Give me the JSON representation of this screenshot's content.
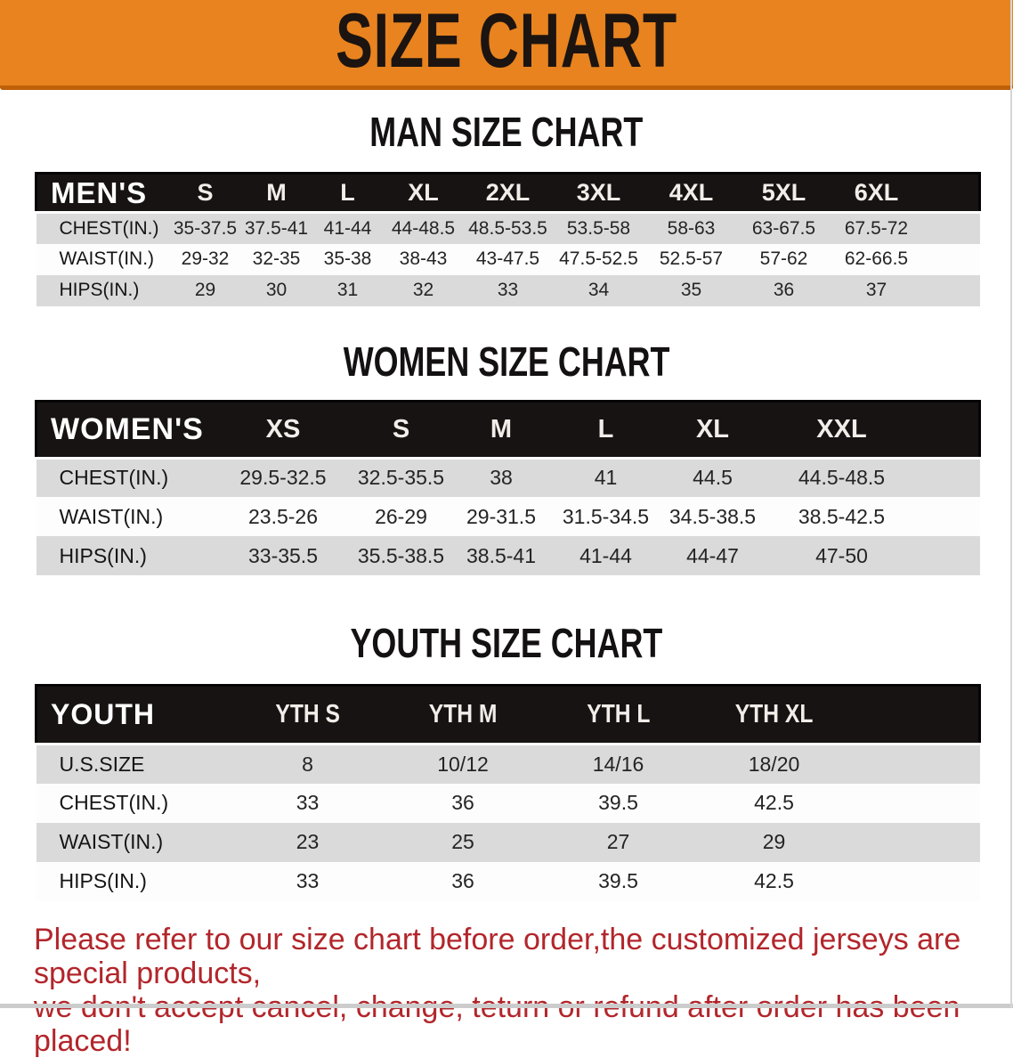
{
  "banner": {
    "title": "SIZE CHART"
  },
  "colors": {
    "banner_bg": "#e8831f",
    "banner_edge": "#bf6009",
    "table_header_bg": "#181313",
    "row_gray": "#dadada",
    "row_white": "#fdfdfd",
    "footer_red": "#b2262b"
  },
  "chart_data": [
    {
      "type": "table",
      "title": "MAN SIZE CHART",
      "corner_label": "MEN'S",
      "columns": [
        "S",
        "M",
        "L",
        "XL",
        "2XL",
        "3XL",
        "4XL",
        "5XL",
        "6XL"
      ],
      "rows": [
        {
          "label": "CHEST(IN.)",
          "values": [
            "35-37.5",
            "37.5-41",
            "41-44",
            "44-48.5",
            "48.5-53.5",
            "53.5-58",
            "58-63",
            "63-67.5",
            "67.5-72"
          ]
        },
        {
          "label": "WAIST(IN.)",
          "values": [
            "29-32",
            "32-35",
            "35-38",
            "38-43",
            "43-47.5",
            "47.5-52.5",
            "52.5-57",
            "57-62",
            "62-66.5"
          ]
        },
        {
          "label": "HIPS(IN.)",
          "values": [
            "29",
            "30",
            "31",
            "32",
            "33",
            "34",
            "35",
            "36",
            "37"
          ]
        }
      ]
    },
    {
      "type": "table",
      "title": "WOMEN SIZE CHART",
      "corner_label": "WOMEN'S",
      "columns": [
        "XS",
        "S",
        "M",
        "L",
        "XL",
        "XXL"
      ],
      "rows": [
        {
          "label": "CHEST(IN.)",
          "values": [
            "29.5-32.5",
            "32.5-35.5",
            "38",
            "41",
            "44.5",
            "44.5-48.5"
          ]
        },
        {
          "label": "WAIST(IN.)",
          "values": [
            "23.5-26",
            "26-29",
            "29-31.5",
            "31.5-34.5",
            "34.5-38.5",
            "38.5-42.5"
          ]
        },
        {
          "label": "HIPS(IN.)",
          "values": [
            "33-35.5",
            "35.5-38.5",
            "38.5-41",
            "41-44",
            "44-47",
            "47-50"
          ]
        }
      ]
    },
    {
      "type": "table",
      "title": "YOUTH SIZE CHART",
      "corner_label": "YOUTH",
      "columns": [
        "YTH S",
        "YTH M",
        "YTH L",
        "YTH XL"
      ],
      "rows": [
        {
          "label": "U.S.SIZE",
          "values": [
            "8",
            "10/12",
            "14/16",
            "18/20"
          ]
        },
        {
          "label": "CHEST(IN.)",
          "values": [
            "33",
            "36",
            "39.5",
            "42.5"
          ]
        },
        {
          "label": "WAIST(IN.)",
          "values": [
            "23",
            "25",
            "27",
            "29"
          ]
        },
        {
          "label": "HIPS(IN.)",
          "values": [
            "33",
            "36",
            "39.5",
            "42.5"
          ]
        }
      ]
    }
  ],
  "footer": {
    "lines": [
      "Please refer to our size chart before order,the customized jerseys are special products,",
      "we don't accept cancel, change, teturn or refund after order has been placed!"
    ]
  }
}
